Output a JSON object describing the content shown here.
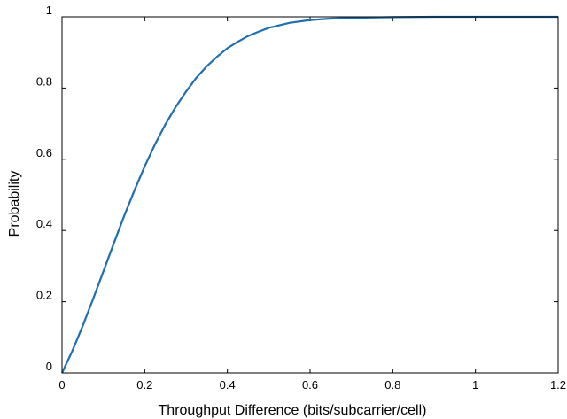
{
  "chart_data": {
    "type": "line",
    "title": "",
    "xlabel": "Throughput Difference (bits/subcarrier/cell)",
    "ylabel": "Probability",
    "xlim": [
      0,
      1.2
    ],
    "ylim": [
      0,
      1
    ],
    "xticks": [
      0,
      0.2,
      0.4,
      0.6,
      0.8,
      1,
      1.2
    ],
    "yticks": [
      0,
      0.2,
      0.4,
      0.6,
      0.8,
      1
    ],
    "xtick_labels": [
      "0",
      "0.2",
      "0.4",
      "0.6",
      "0.8",
      "1",
      "1.2"
    ],
    "ytick_labels": [
      "0",
      "0.2",
      "0.4",
      "0.6",
      "0.8",
      "1"
    ],
    "grid": false,
    "legend": "none",
    "series": [
      {
        "color": "#1f6fb0",
        "x": [
          0,
          0.025,
          0.05,
          0.075,
          0.1,
          0.125,
          0.15,
          0.175,
          0.2,
          0.225,
          0.25,
          0.275,
          0.3,
          0.325,
          0.35,
          0.375,
          0.4,
          0.425,
          0.45,
          0.475,
          0.5,
          0.55,
          0.6,
          0.65,
          0.7,
          0.8,
          0.9,
          1.0,
          1.1,
          1.2
        ],
        "y": [
          0,
          0.062,
          0.132,
          0.207,
          0.285,
          0.363,
          0.44,
          0.512,
          0.58,
          0.642,
          0.698,
          0.747,
          0.79,
          0.829,
          0.861,
          0.888,
          0.912,
          0.93,
          0.946,
          0.958,
          0.969,
          0.983,
          0.991,
          0.995,
          0.997,
          0.999,
          1.0,
          1.0,
          1.0,
          1.0
        ]
      }
    ]
  }
}
